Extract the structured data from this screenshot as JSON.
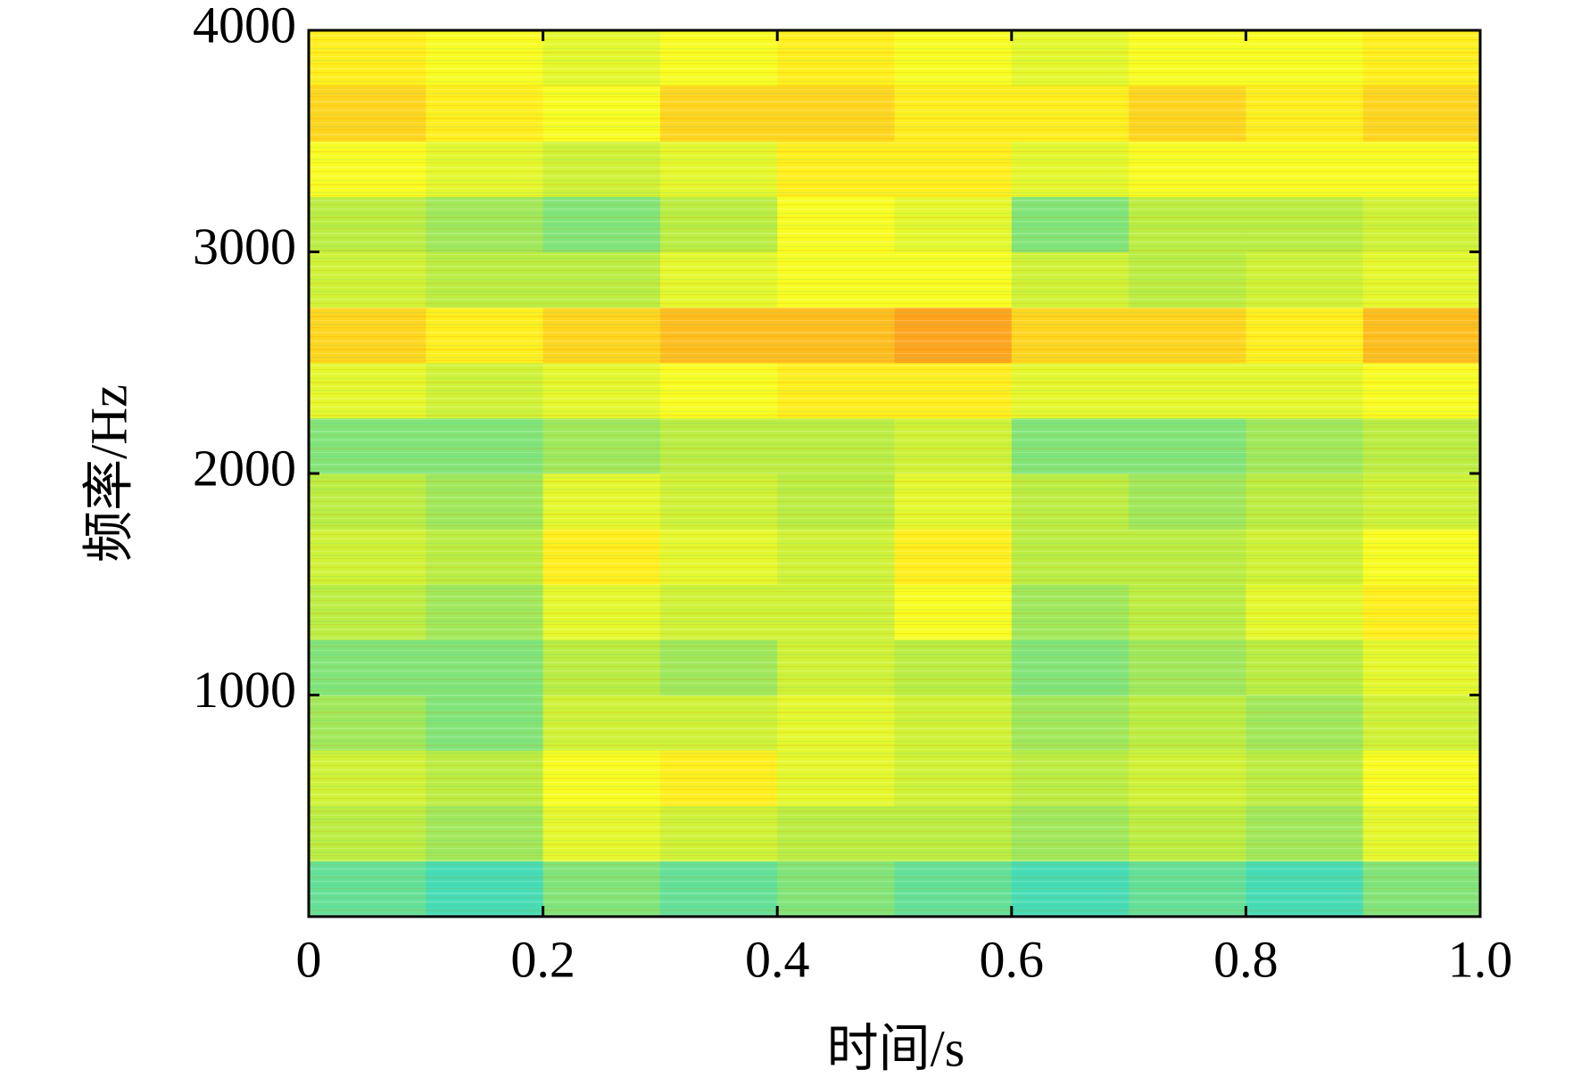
{
  "chart_data": {
    "type": "heatmap",
    "xlabel": "时间/s",
    "ylabel": "频率/Hz",
    "xlim": [
      0,
      1
    ],
    "ylim": [
      0,
      4000
    ],
    "xticks": [
      0,
      0.2,
      0.4,
      0.6,
      0.8,
      {
        "value": 1,
        "label": "1.0"
      }
    ],
    "yticks": [
      1000,
      2000,
      3000,
      4000
    ],
    "x_bins": [
      0,
      0.1,
      0.2,
      0.3,
      0.4,
      0.5,
      0.6,
      0.7,
      0.8,
      0.9,
      1
    ],
    "y_bins": [
      0,
      250,
      500,
      750,
      1000,
      1250,
      1500,
      1750,
      2000,
      2250,
      2500,
      2750,
      3000,
      3250,
      3500,
      3750,
      4000
    ],
    "clim": [
      0.3,
      0.85
    ],
    "colormap": [
      "#46dcb4",
      "#b4eb46",
      "#ffff1e",
      "#ffa51e"
    ],
    "z": [
      [
        0.35,
        0.3,
        0.4,
        0.35,
        0.4,
        0.35,
        0.3,
        0.35,
        0.3,
        0.4
      ],
      [
        0.5,
        0.45,
        0.6,
        0.55,
        0.5,
        0.5,
        0.45,
        0.5,
        0.45,
        0.6
      ],
      [
        0.55,
        0.5,
        0.65,
        0.7,
        0.6,
        0.55,
        0.5,
        0.55,
        0.5,
        0.65
      ],
      [
        0.45,
        0.4,
        0.55,
        0.55,
        0.6,
        0.55,
        0.45,
        0.5,
        0.45,
        0.55
      ],
      [
        0.4,
        0.4,
        0.5,
        0.45,
        0.55,
        0.5,
        0.4,
        0.45,
        0.5,
        0.6
      ],
      [
        0.5,
        0.45,
        0.6,
        0.55,
        0.55,
        0.65,
        0.45,
        0.5,
        0.6,
        0.7
      ],
      [
        0.55,
        0.5,
        0.7,
        0.6,
        0.55,
        0.7,
        0.5,
        0.5,
        0.55,
        0.65
      ],
      [
        0.5,
        0.45,
        0.6,
        0.55,
        0.5,
        0.6,
        0.5,
        0.45,
        0.5,
        0.55
      ],
      [
        0.4,
        0.4,
        0.45,
        0.5,
        0.5,
        0.55,
        0.4,
        0.4,
        0.45,
        0.5
      ],
      [
        0.6,
        0.55,
        0.6,
        0.65,
        0.7,
        0.7,
        0.6,
        0.6,
        0.6,
        0.65
      ],
      [
        0.75,
        0.7,
        0.75,
        0.8,
        0.8,
        0.85,
        0.75,
        0.75,
        0.7,
        0.8
      ],
      [
        0.55,
        0.5,
        0.5,
        0.6,
        0.65,
        0.65,
        0.55,
        0.5,
        0.55,
        0.6
      ],
      [
        0.5,
        0.45,
        0.4,
        0.5,
        0.65,
        0.6,
        0.4,
        0.5,
        0.5,
        0.55
      ],
      [
        0.65,
        0.6,
        0.55,
        0.6,
        0.7,
        0.7,
        0.6,
        0.65,
        0.65,
        0.65
      ],
      [
        0.75,
        0.7,
        0.65,
        0.75,
        0.75,
        0.7,
        0.7,
        0.75,
        0.7,
        0.75
      ],
      [
        0.7,
        0.65,
        0.6,
        0.65,
        0.7,
        0.65,
        0.6,
        0.65,
        0.65,
        0.7
      ]
    ]
  }
}
